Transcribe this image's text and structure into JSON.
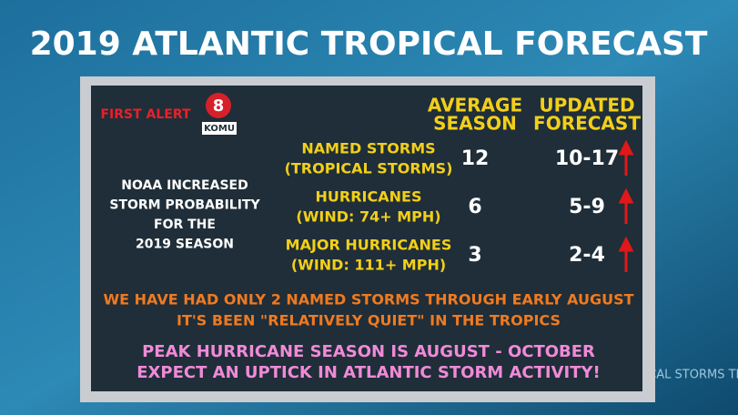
{
  "title": "2019 ATLANTIC TROPICAL FORECAST",
  "logo": {
    "brand": "FIRST ALERT",
    "channel": "8",
    "station": "KOMU"
  },
  "side_note": [
    "NOAA INCREASED",
    "STORM PROBABILITY",
    "FOR THE",
    "2019 SEASON"
  ],
  "table": {
    "headers": [
      [
        "AVERAGE",
        "SEASON"
      ],
      [
        "UPDATED",
        "FORECAST"
      ]
    ],
    "rows": [
      {
        "label": [
          "NAMED STORMS",
          "(TROPICAL STORMS)"
        ],
        "average": 12,
        "updated": "10-17"
      },
      {
        "label": [
          "HURRICANES",
          "(WIND: 74+ MPH)"
        ],
        "average": 6,
        "updated": "5-9"
      },
      {
        "label": [
          "MAJOR HURRICANES",
          "(WIND: 111+ MPH)"
        ],
        "average": 3,
        "updated": "2-4"
      }
    ]
  },
  "notes": [
    "WE HAVE HAD ONLY 2 NAMED STORMS THROUGH EARLY AUGUST",
    "IT'S BEEN \"RELATIVELY QUIET\" IN THE TROPICS"
  ],
  "highlights": [
    "PEAK HURRICANE SEASON IS AUGUST - OCTOBER",
    "EXPECT AN UPTICK IN ATLANTIC STORM ACTIVITY!"
  ],
  "background_text": "CAL STORMS  TRO"
}
